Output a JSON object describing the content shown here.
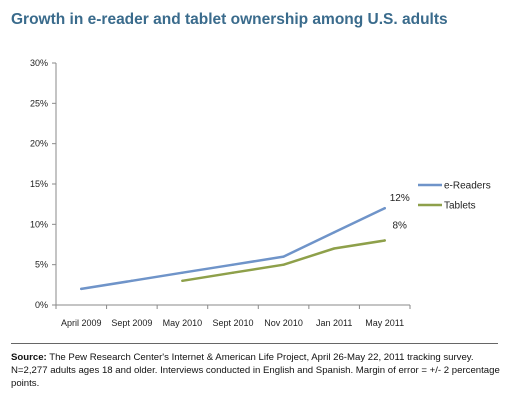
{
  "chart_data": {
    "type": "line",
    "title": "Growth in e-reader and tablet ownership among U.S. adults",
    "categories": [
      "April 2009",
      "Sept 2009",
      "May 2010",
      "Sept 2010",
      "Nov 2010",
      "Jan 2011",
      "May 2011"
    ],
    "y_ticks": [
      "0%",
      "5%",
      "10%",
      "15%",
      "20%",
      "25%",
      "30%"
    ],
    "ylim": [
      0,
      30
    ],
    "y_unit": "%",
    "series": [
      {
        "name": "e-Readers",
        "color": "#6f94c9",
        "values": [
          2,
          3,
          4,
          5,
          6,
          9,
          12
        ],
        "end_label": "12%"
      },
      {
        "name": "Tablets",
        "color": "#8ea04a",
        "values": [
          null,
          null,
          3,
          4,
          5,
          7,
          8
        ],
        "end_label": "8%"
      }
    ],
    "legend_position": "right",
    "grid": false
  },
  "source": {
    "label": "Source:",
    "text": " The Pew Research Center's Internet & American Life Project, April 26-May 22, 2011 tracking survey. N=2,277 adults ages 18 and older. Interviews conducted in English and Spanish. Margin of error = +/- 2 percentage points."
  }
}
